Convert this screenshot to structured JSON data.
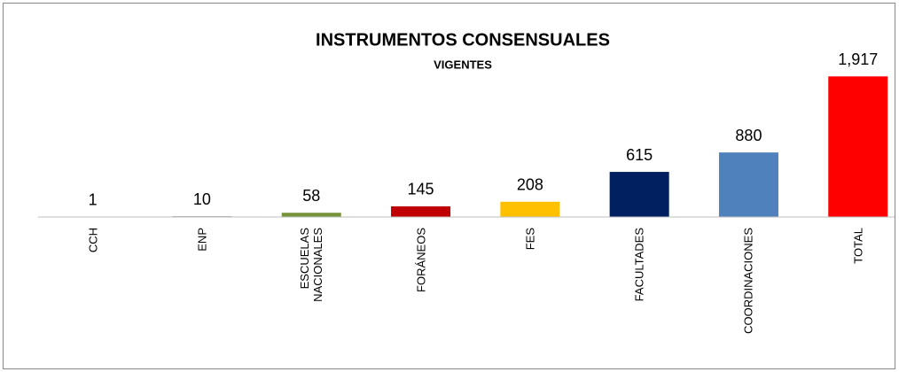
{
  "chart_data": {
    "type": "bar",
    "title": "INSTRUMENTOS CONSENSUALES",
    "subtitle": "VIGENTES",
    "categories": [
      "CCH",
      "ENP",
      "ESCUELAS\nNACIONALES",
      "FORÁNEOS",
      "FES",
      "FACULTADES",
      "COORDINACIONES",
      "TOTAL"
    ],
    "values": [
      1,
      10,
      58,
      145,
      208,
      615,
      880,
      1917
    ],
    "value_labels": [
      "1",
      "10",
      "58",
      "145",
      "208",
      "615",
      "880",
      "1,917"
    ],
    "colors": [
      "#a6a6a6",
      "#7f7f7f",
      "#77933c",
      "#c00000",
      "#ffc000",
      "#002060",
      "#4f81bd",
      "#ff0000"
    ],
    "ylim": [
      0,
      2500
    ]
  }
}
